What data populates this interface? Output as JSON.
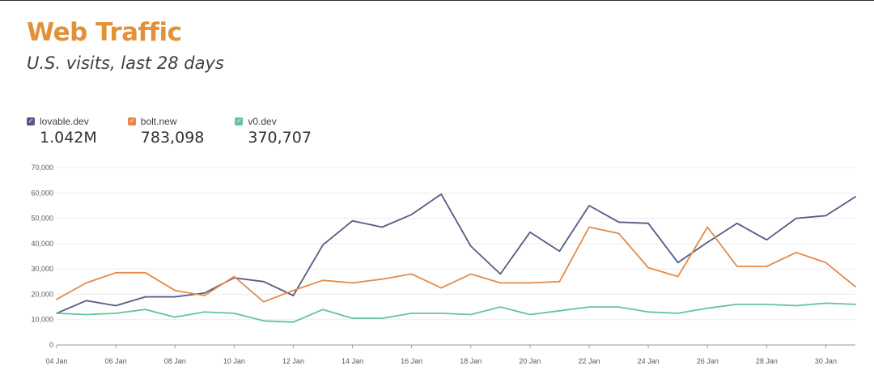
{
  "header": {
    "title": "Web Traffic",
    "subtitle": "U.S. visits, last 28 days"
  },
  "legend": [
    {
      "name": "lovable.dev",
      "value": "1.042M",
      "color": "#575A84"
    },
    {
      "name": "bolt.new",
      "value": "783,098",
      "color": "#E58A48"
    },
    {
      "name": "v0.dev",
      "value": "370,707",
      "color": "#62C4A0"
    }
  ],
  "chart_data": {
    "type": "line",
    "title": "Web Traffic",
    "subtitle": "U.S. visits, last 28 days",
    "xlabel": "",
    "ylabel": "",
    "ylim": [
      0,
      70000
    ],
    "yticks": [
      0,
      10000,
      20000,
      30000,
      40000,
      50000,
      60000,
      70000
    ],
    "ytick_labels": [
      "0",
      "10,000",
      "20,000",
      "30,000",
      "40,000",
      "50,000",
      "60,000",
      "70,000"
    ],
    "xlim": [
      "04 Jan",
      "31 Jan"
    ],
    "xtick_labels": [
      "04 Jan",
      "06 Jan",
      "08 Jan",
      "10 Jan",
      "12 Jan",
      "14 Jan",
      "16 Jan",
      "18 Jan",
      "20 Jan",
      "22 Jan",
      "24 Jan",
      "26 Jan",
      "28 Jan",
      "30 Jan"
    ],
    "grid": true,
    "legend_position": "top-left",
    "x": [
      "04 Jan",
      "05 Jan",
      "06 Jan",
      "07 Jan",
      "08 Jan",
      "09 Jan",
      "10 Jan",
      "11 Jan",
      "12 Jan",
      "13 Jan",
      "14 Jan",
      "15 Jan",
      "16 Jan",
      "17 Jan",
      "18 Jan",
      "19 Jan",
      "20 Jan",
      "21 Jan",
      "22 Jan",
      "23 Jan",
      "24 Jan",
      "25 Jan",
      "26 Jan",
      "27 Jan",
      "28 Jan",
      "29 Jan",
      "30 Jan",
      "31 Jan"
    ],
    "series": [
      {
        "name": "lovable.dev",
        "color": "#575A84",
        "values": [
          12500,
          17500,
          15500,
          19000,
          19000,
          20500,
          26500,
          25000,
          19500,
          39500,
          49000,
          46500,
          51500,
          59500,
          39000,
          28000,
          44500,
          37000,
          55000,
          48500,
          48000,
          32500,
          40500,
          48000,
          41500,
          50000,
          51000,
          58500
        ]
      },
      {
        "name": "bolt.new",
        "color": "#E58A48",
        "values": [
          18000,
          24500,
          28500,
          28500,
          21500,
          19500,
          27000,
          17000,
          21500,
          25500,
          24500,
          26000,
          28000,
          22500,
          28000,
          24500,
          24500,
          25000,
          46500,
          44000,
          30500,
          27000,
          46500,
          31000,
          31000,
          36500,
          32500,
          23000
        ]
      },
      {
        "name": "v0.dev",
        "color": "#62C4A0",
        "values": [
          12500,
          12000,
          12500,
          14000,
          11000,
          13000,
          12500,
          9500,
          9000,
          14000,
          10500,
          10500,
          12500,
          12500,
          12000,
          15000,
          12000,
          13500,
          15000,
          15000,
          13000,
          12500,
          14500,
          16000,
          16000,
          15500,
          16500,
          16000
        ]
      }
    ]
  }
}
